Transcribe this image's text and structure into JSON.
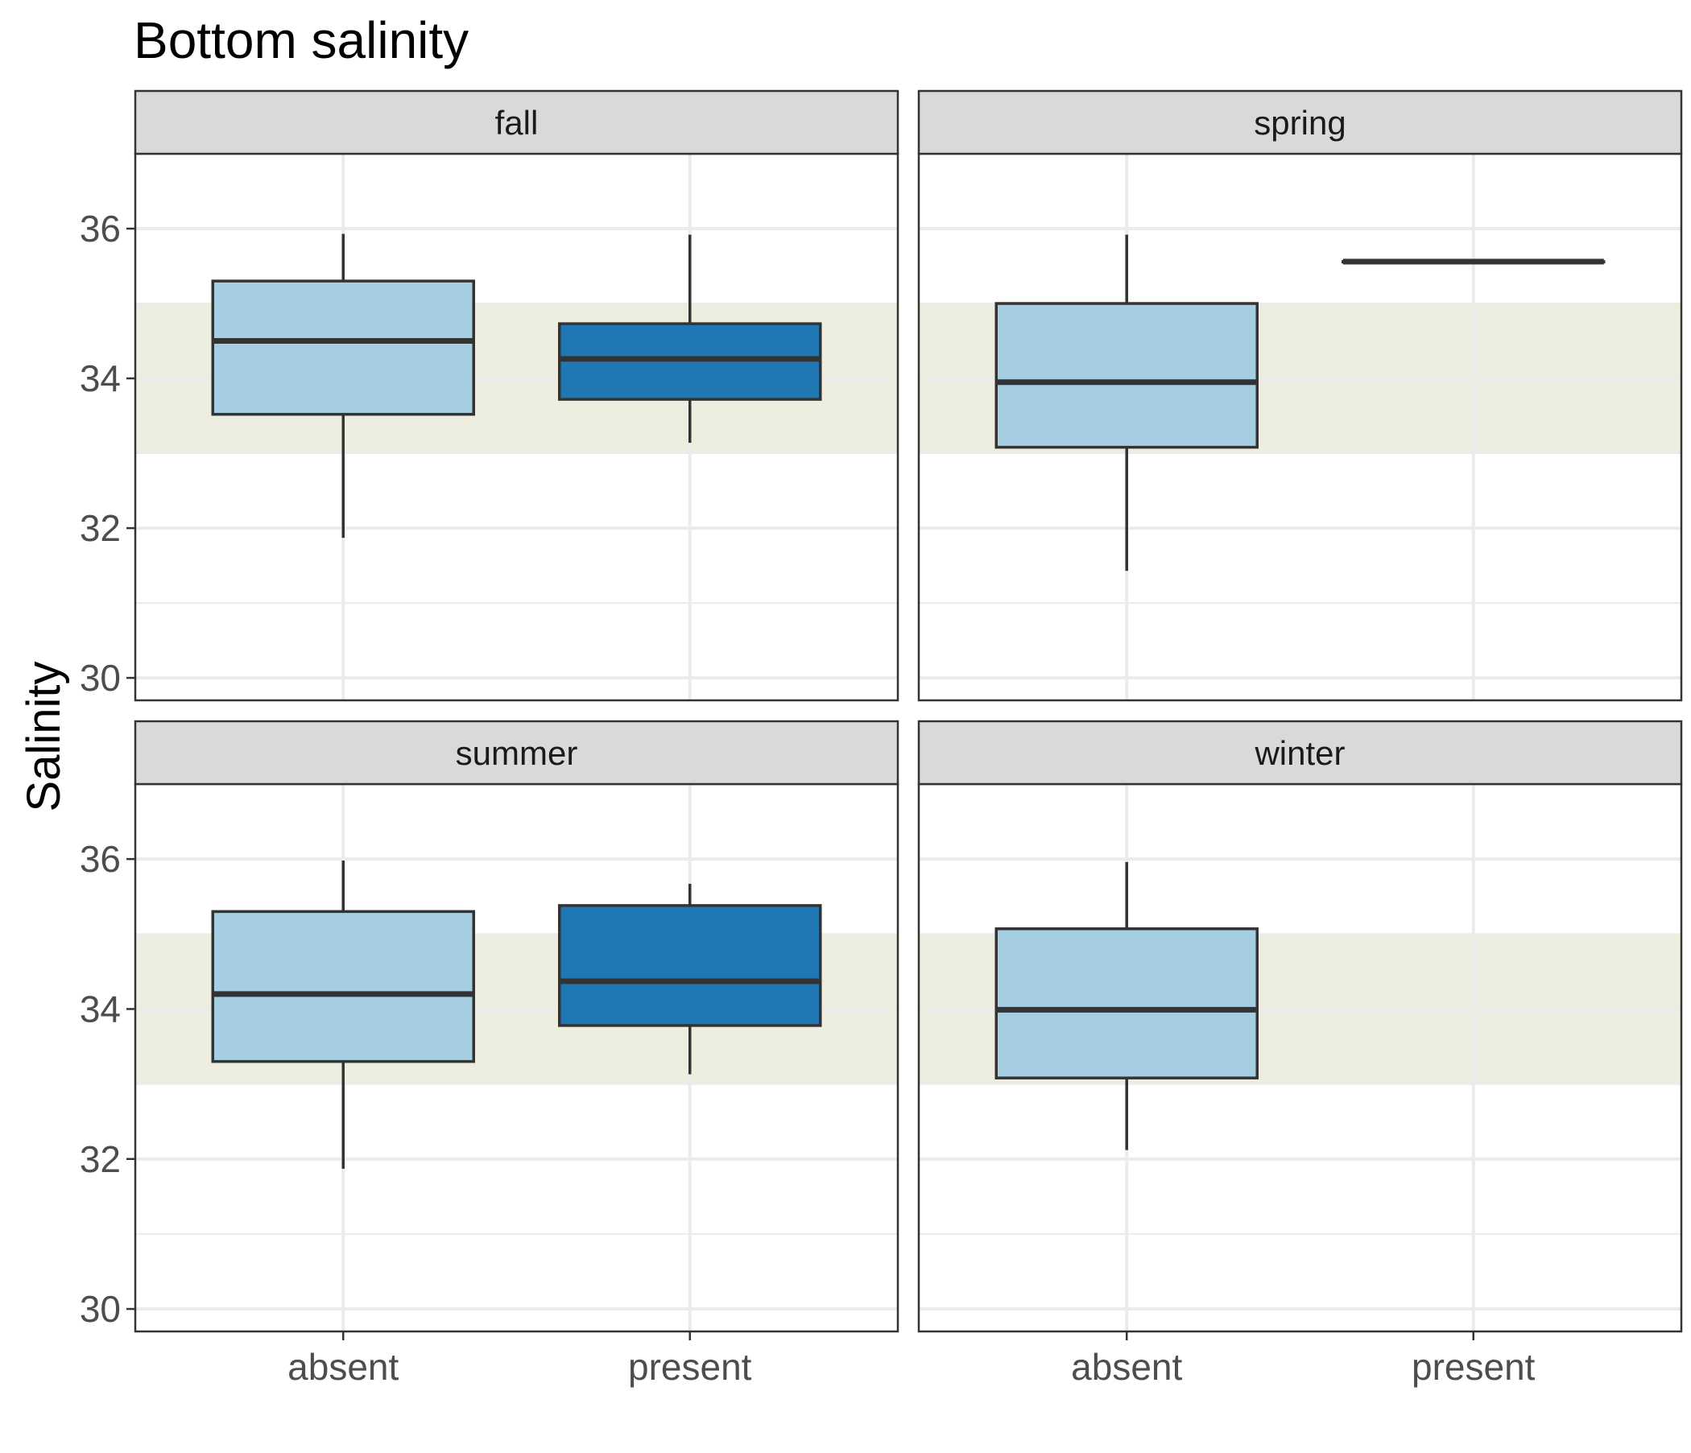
{
  "chart_data": {
    "type": "box",
    "title": "Bottom salinity",
    "ylabel": "Salinity",
    "xlabel": "",
    "categories": [
      "absent",
      "present"
    ],
    "ylim": [
      29.7,
      37.0
    ],
    "yticks": [
      30,
      32,
      34,
      36
    ],
    "reference_band": {
      "ymin": 33,
      "ymax": 35,
      "color": "#eeeee0"
    },
    "grid": true,
    "legend": "none",
    "colors": {
      "absent": "#a6cee3",
      "present": "#1f78b4",
      "outline": "#333333",
      "strip_fill": "#d9d9d9",
      "grid": "#ebebeb"
    },
    "panels": [
      {
        "label": "fall",
        "boxes": [
          {
            "category": "absent",
            "lower_whisker": 31.87,
            "q1": 33.52,
            "median": 34.5,
            "q3": 35.3,
            "upper_whisker": 35.93
          },
          {
            "category": "present",
            "lower_whisker": 33.14,
            "q1": 33.72,
            "median": 34.26,
            "q3": 34.73,
            "upper_whisker": 35.92
          }
        ]
      },
      {
        "label": "spring",
        "boxes": [
          {
            "category": "absent",
            "lower_whisker": 31.43,
            "q1": 33.08,
            "median": 33.95,
            "q3": 35.0,
            "upper_whisker": 35.92
          },
          {
            "category": "present",
            "lower_whisker": 35.56,
            "q1": 35.56,
            "median": 35.56,
            "q3": 35.56,
            "upper_whisker": 35.56
          }
        ]
      },
      {
        "label": "summer",
        "boxes": [
          {
            "category": "absent",
            "lower_whisker": 31.87,
            "q1": 33.3,
            "median": 34.2,
            "q3": 35.3,
            "upper_whisker": 35.98
          },
          {
            "category": "present",
            "lower_whisker": 33.13,
            "q1": 33.78,
            "median": 34.37,
            "q3": 35.38,
            "upper_whisker": 35.67
          }
        ]
      },
      {
        "label": "winter",
        "boxes": [
          {
            "category": "absent",
            "lower_whisker": 32.12,
            "q1": 33.08,
            "median": 33.99,
            "q3": 35.07,
            "upper_whisker": 35.96
          }
        ]
      }
    ]
  }
}
